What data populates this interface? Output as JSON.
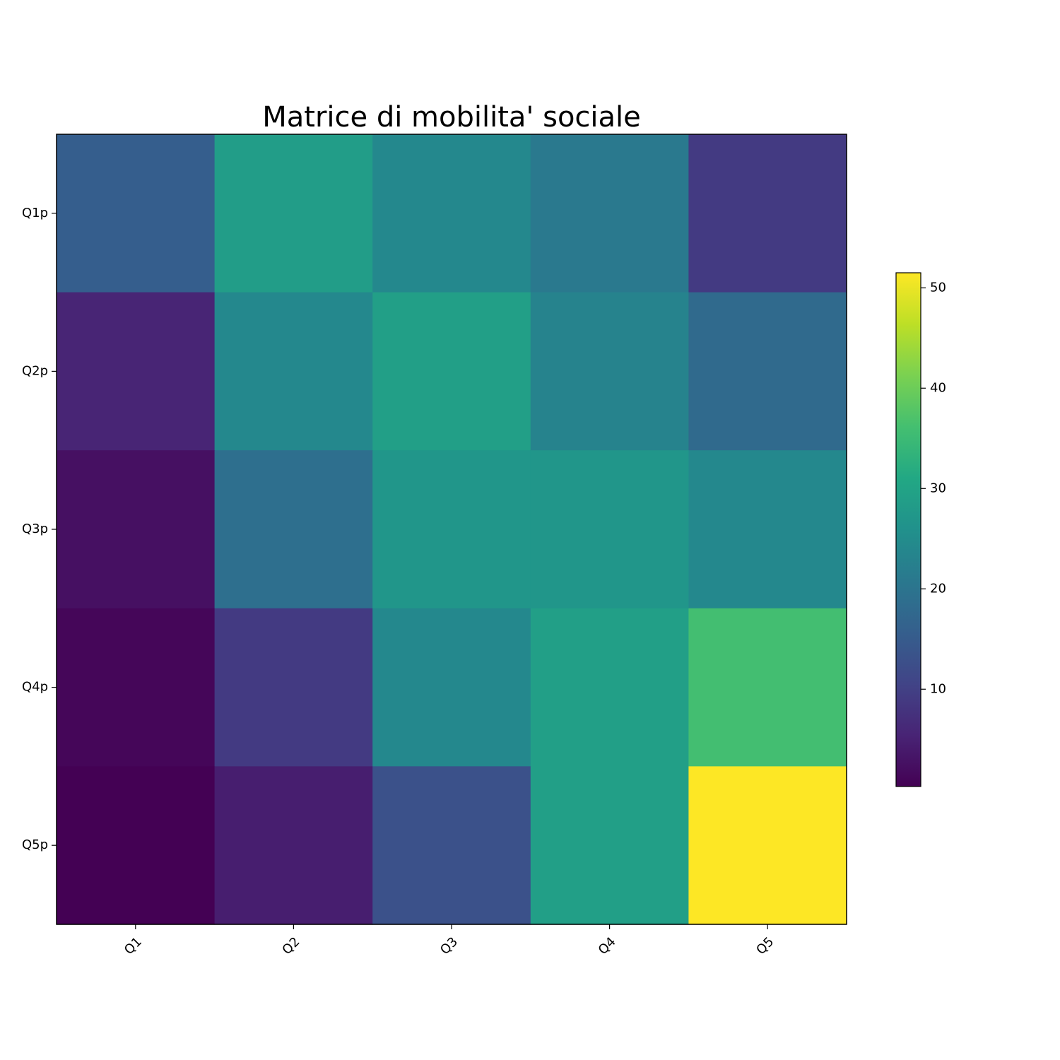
{
  "chart_data": {
    "type": "heatmap",
    "title": "Matrice di mobilita' sociale",
    "xlabel": "",
    "ylabel": "",
    "x_categories": [
      "Q1",
      "Q2",
      "Q3",
      "Q4",
      "Q5"
    ],
    "y_categories": [
      "Q1p",
      "Q2p",
      "Q3p",
      "Q4p",
      "Q5p"
    ],
    "values": [
      [
        15.5,
        28.5,
        24.0,
        21.0,
        9.0
      ],
      [
        5.5,
        24.0,
        29.0,
        23.0,
        18.0
      ],
      [
        2.5,
        19.0,
        27.0,
        27.0,
        24.0
      ],
      [
        1.0,
        9.0,
        24.0,
        29.0,
        36.0
      ],
      [
        0.3,
        4.5,
        13.0,
        29.0,
        51.5
      ]
    ],
    "colormap": "viridis",
    "colorbar": {
      "min": 0.3,
      "max": 51.5,
      "ticks": [
        10,
        20,
        30,
        40,
        50
      ]
    },
    "grid": false
  }
}
